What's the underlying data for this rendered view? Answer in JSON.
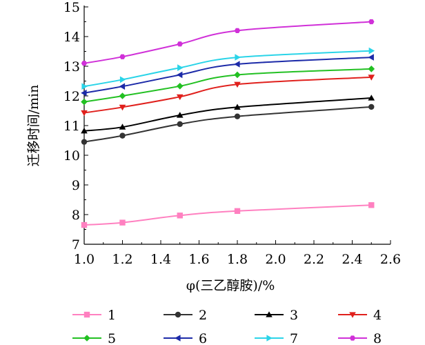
{
  "chart_data": {
    "type": "line",
    "xlabel": "φ(三乙醇胺)/%",
    "ylabel": "迁移时间/min",
    "xlim": [
      1.0,
      2.6
    ],
    "ylim": [
      7,
      15
    ],
    "xticks": [
      1.0,
      1.2,
      1.4,
      1.6,
      1.8,
      2.0,
      2.2,
      2.4,
      2.6
    ],
    "xtick_labels": [
      "1.0",
      "1.2",
      "1.4",
      "1.6",
      "1.8",
      "2.0",
      "2.2",
      "2.4",
      "2.6"
    ],
    "yticks": [
      7,
      8,
      9,
      10,
      11,
      12,
      13,
      14,
      15
    ],
    "ytick_labels": [
      "7",
      "8",
      "9",
      "10",
      "11",
      "12",
      "13",
      "14",
      "15"
    ],
    "grid": false,
    "legend_position": "bottom",
    "x": [
      1.0,
      1.2,
      1.5,
      1.8,
      2.5
    ],
    "series": [
      {
        "name": "1",
        "color": "#ff80c0",
        "marker": "square",
        "values": [
          7.65,
          7.73,
          7.97,
          8.12,
          8.32
        ]
      },
      {
        "name": "2",
        "color": "#333333",
        "marker": "circle",
        "values": [
          10.45,
          10.66,
          11.05,
          11.31,
          11.63
        ]
      },
      {
        "name": "3",
        "color": "#000000",
        "marker": "triangle-up",
        "values": [
          10.82,
          10.95,
          11.35,
          11.62,
          11.93
        ]
      },
      {
        "name": "4",
        "color": "#e0201c",
        "marker": "triangle-down",
        "values": [
          11.43,
          11.62,
          11.97,
          12.39,
          12.63
        ]
      },
      {
        "name": "5",
        "color": "#22c022",
        "marker": "diamond",
        "values": [
          11.8,
          12.0,
          12.33,
          12.71,
          12.91
        ]
      },
      {
        "name": "6",
        "color": "#1c2aa8",
        "marker": "triangle-left",
        "values": [
          12.1,
          12.32,
          12.71,
          13.07,
          13.3
        ]
      },
      {
        "name": "7",
        "color": "#2ad4e8",
        "marker": "triangle-right",
        "values": [
          12.32,
          12.55,
          12.95,
          13.3,
          13.52
        ]
      },
      {
        "name": "8",
        "color": "#d030d8",
        "marker": "hexagon",
        "values": [
          13.1,
          13.32,
          13.75,
          14.2,
          14.5
        ]
      }
    ]
  }
}
